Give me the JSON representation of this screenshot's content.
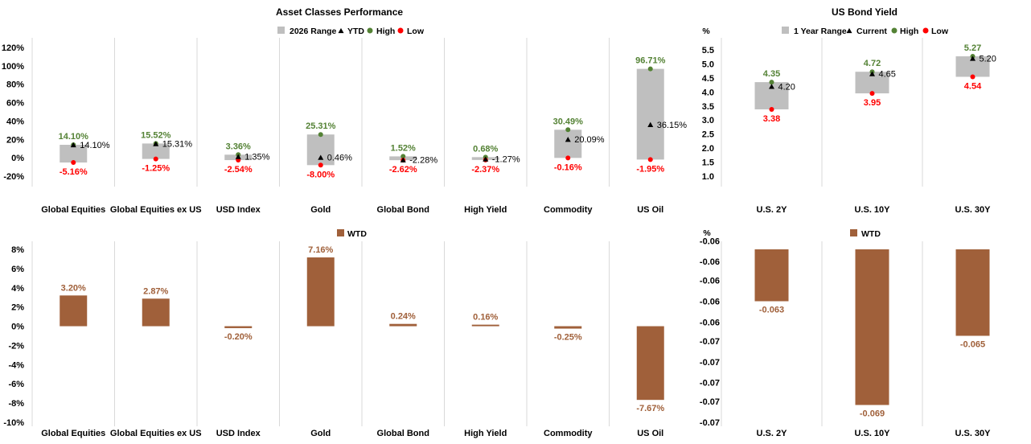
{
  "colors": {
    "range": "#bfbfbf",
    "high": "#548235",
    "low": "#ff0000",
    "wtd": "#a0603a",
    "grid": "#d9d9d9"
  },
  "chart_data": [
    {
      "id": "asset_perf",
      "type": "range",
      "title": "Asset Classes Performance",
      "legend": [
        "2026 Range",
        "YTD",
        "High",
        "Low"
      ],
      "categories": [
        "Global Equities",
        "Global Equities ex US",
        "USD Index",
        "Gold",
        "Global Bond",
        "High Yield",
        "Commodity",
        "US Oil"
      ],
      "high": [
        14.1,
        15.52,
        3.36,
        25.31,
        1.52,
        0.68,
        30.49,
        96.71
      ],
      "low": [
        -5.16,
        -1.25,
        -2.54,
        -8.0,
        -2.62,
        -2.37,
        -0.16,
        -1.95
      ],
      "current": [
        14.1,
        15.31,
        1.35,
        0.46,
        -2.28,
        -1.27,
        20.09,
        36.15
      ],
      "high_labels": [
        "14.10%",
        "15.52%",
        "3.36%",
        "25.31%",
        "1.52%",
        "0.68%",
        "30.49%",
        "96.71%"
      ],
      "low_labels": [
        "-5.16%",
        "-1.25%",
        "-2.54%",
        "-8.00%",
        "-2.62%",
        "-2.37%",
        "-0.16%",
        "-1.95%"
      ],
      "current_labels": [
        "14.10%",
        "15.31%",
        "1.35%",
        "0.46%",
        "-2.28%",
        "-1.27%",
        "20.09%",
        "36.15%"
      ],
      "ylim": [
        -20,
        120
      ],
      "yticks": [
        -20,
        0,
        20,
        40,
        60,
        80,
        100,
        120
      ],
      "ytick_labels": [
        "-20%",
        "0%",
        "20%",
        "40%",
        "60%",
        "80%",
        "100%",
        "120%"
      ]
    },
    {
      "id": "bond_yield",
      "type": "range",
      "title": "US Bond Yield",
      "ylabel": "%",
      "legend": [
        "1 Year Range",
        "Current",
        "High",
        "Low"
      ],
      "categories": [
        "U.S. 2Y",
        "U.S. 10Y",
        "U.S. 30Y"
      ],
      "high": [
        4.35,
        4.72,
        5.27
      ],
      "low": [
        3.38,
        3.95,
        4.54
      ],
      "current": [
        4.2,
        4.65,
        5.2
      ],
      "high_labels": [
        "4.35",
        "4.72",
        "5.27"
      ],
      "low_labels": [
        "3.38",
        "3.95",
        "4.54"
      ],
      "current_labels": [
        "4.20",
        "4.65",
        "5.20"
      ],
      "ylim": [
        1.0,
        5.5
      ],
      "yticks": [
        1.0,
        1.5,
        2.0,
        2.5,
        3.0,
        3.5,
        4.0,
        4.5,
        5.0,
        5.5
      ],
      "ytick_labels": [
        "1.0",
        "1.5",
        "2.0",
        "2.5",
        "3.0",
        "3.5",
        "4.0",
        "4.5",
        "5.0",
        "5.5"
      ]
    },
    {
      "id": "asset_wtd",
      "type": "bar",
      "legend": [
        "WTD"
      ],
      "categories": [
        "Global Equities",
        "Global Equities ex US",
        "USD Index",
        "Gold",
        "Global Bond",
        "High Yield",
        "Commodity",
        "US Oil"
      ],
      "values": [
        3.2,
        2.87,
        -0.2,
        7.16,
        0.24,
        0.16,
        -0.25,
        -7.67
      ],
      "value_labels": [
        "3.20%",
        "2.87%",
        "-0.20%",
        "7.16%",
        "0.24%",
        "0.16%",
        "-0.25%",
        "-7.67%"
      ],
      "ylim": [
        -10,
        8
      ],
      "yticks": [
        -10,
        -8,
        -6,
        -4,
        -2,
        0,
        2,
        4,
        6,
        8
      ],
      "ytick_labels": [
        "-10%",
        "-8%",
        "-6%",
        "-4%",
        "-2%",
        "0%",
        "2%",
        "4%",
        "6%",
        "8%"
      ]
    },
    {
      "id": "bond_wtd",
      "type": "bar",
      "ylabel": "%",
      "legend": [
        "WTD"
      ],
      "categories": [
        "U.S. 2Y",
        "U.S. 10Y",
        "U.S. 30Y"
      ],
      "values": [
        -0.063,
        -0.069,
        -0.065
      ],
      "value_labels": [
        "-0.063",
        "-0.069",
        "-0.065"
      ],
      "ylim": [
        -0.07,
        -0.06
      ],
      "yticks": [
        -0.07,
        -0.0688,
        -0.0677,
        -0.0665,
        -0.0653,
        -0.0642,
        -0.063,
        -0.0618,
        -0.0607,
        -0.0595
      ],
      "ytick_labels": [
        "-0.07",
        "-0.07",
        "-0.07",
        "-0.07",
        "-0.07",
        "-0.06",
        "-0.06",
        "-0.06",
        "-0.06",
        "-0.06"
      ]
    }
  ]
}
